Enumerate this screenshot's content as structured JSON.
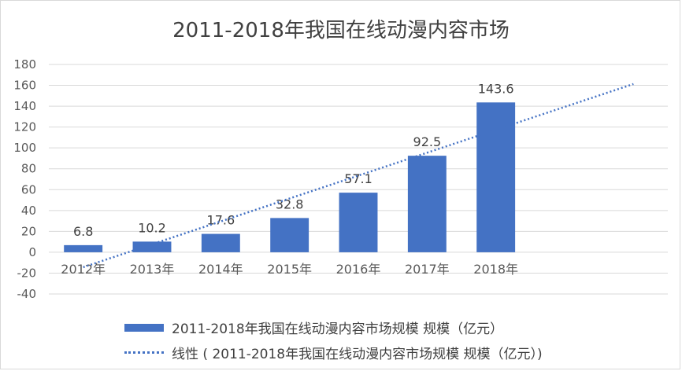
{
  "chart_data": {
    "type": "bar",
    "title": "2011-2018年我国在线动漫内容市场",
    "categories": [
      "2012年",
      "2013年",
      "2014年",
      "2015年",
      "2016年",
      "2017年",
      "2018年"
    ],
    "series": [
      {
        "name": "2011-2018年我国在线动漫内容市场规模 规模（亿元）",
        "values": [
          6.8,
          10.2,
          17.6,
          32.8,
          57.1,
          92.5,
          143.6
        ]
      }
    ],
    "data_labels": [
      "6.8",
      "10.2",
      "17.6",
      "32.8",
      "57.1",
      "92.5",
      "143.6"
    ],
    "trendline": {
      "name": "线性 ( 2011-2018年我国在线动漫内容市场规模 规模（亿元）)",
      "type": "linear",
      "style": "dotted"
    },
    "ylim": [
      -40,
      180
    ],
    "yticks": [
      "-40",
      "-20",
      "0",
      "20",
      "40",
      "60",
      "80",
      "100",
      "120",
      "140",
      "160",
      "180"
    ],
    "grid": true,
    "legend_position": "bottom",
    "color": "#4472c4"
  }
}
